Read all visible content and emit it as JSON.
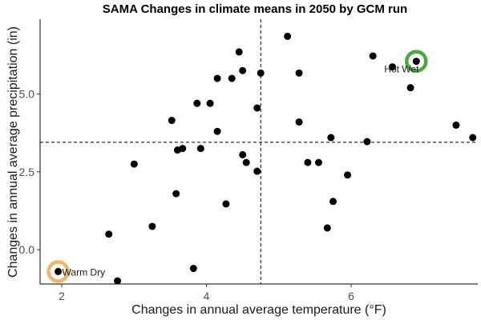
{
  "chart_data": {
    "type": "scatter",
    "title": "SAMA Changes in climate means in 2050 by GCM run",
    "xlabel": "Changes in annual average temperature (°F)",
    "ylabel": "Changes in annual average precipitation (in)",
    "xlim": [
      1.7,
      7.75
    ],
    "ylim": [
      -1.1,
      7.4
    ],
    "x_ticks": [
      2,
      4,
      6
    ],
    "x_tick_labels": [
      "2",
      "4",
      "6"
    ],
    "y_ticks": [
      0,
      2.5,
      5
    ],
    "y_tick_labels": [
      "0.0",
      "2.5",
      "5.0"
    ],
    "grid": false,
    "reference_lines": {
      "x": 4.75,
      "y": 3.45,
      "style": "dashed"
    },
    "points": [
      {
        "x": 1.95,
        "y": -0.7
      },
      {
        "x": 2.77,
        "y": -1.0
      },
      {
        "x": 2.65,
        "y": 0.5
      },
      {
        "x": 3.0,
        "y": 2.75
      },
      {
        "x": 3.25,
        "y": 0.75
      },
      {
        "x": 3.52,
        "y": 4.15
      },
      {
        "x": 3.58,
        "y": 1.8
      },
      {
        "x": 3.6,
        "y": 3.2
      },
      {
        "x": 3.67,
        "y": 3.25
      },
      {
        "x": 3.82,
        "y": -0.6
      },
      {
        "x": 3.87,
        "y": 4.7
      },
      {
        "x": 3.92,
        "y": 3.25
      },
      {
        "x": 4.05,
        "y": 4.7
      },
      {
        "x": 4.15,
        "y": 3.8
      },
      {
        "x": 4.15,
        "y": 5.5
      },
      {
        "x": 4.27,
        "y": 1.47
      },
      {
        "x": 4.35,
        "y": 5.5
      },
      {
        "x": 4.45,
        "y": 6.35
      },
      {
        "x": 4.5,
        "y": 3.05
      },
      {
        "x": 4.5,
        "y": 5.75
      },
      {
        "x": 4.55,
        "y": 2.8
      },
      {
        "x": 4.7,
        "y": 4.55
      },
      {
        "x": 4.7,
        "y": 2.52
      },
      {
        "x": 4.75,
        "y": 5.67
      },
      {
        "x": 5.12,
        "y": 6.85
      },
      {
        "x": 5.28,
        "y": 5.67
      },
      {
        "x": 5.28,
        "y": 4.1
      },
      {
        "x": 5.4,
        "y": 2.8
      },
      {
        "x": 5.55,
        "y": 2.8
      },
      {
        "x": 5.67,
        "y": 0.7
      },
      {
        "x": 5.72,
        "y": 3.6
      },
      {
        "x": 5.75,
        "y": 1.55
      },
      {
        "x": 5.95,
        "y": 2.4
      },
      {
        "x": 6.22,
        "y": 3.47
      },
      {
        "x": 6.3,
        "y": 6.22
      },
      {
        "x": 6.57,
        "y": 5.87
      },
      {
        "x": 6.82,
        "y": 5.2
      },
      {
        "x": 6.9,
        "y": 6.05
      },
      {
        "x": 7.45,
        "y": 4.0
      },
      {
        "x": 7.68,
        "y": 3.6
      }
    ],
    "highlights": [
      {
        "label": "Warm Dry",
        "x": 1.95,
        "y": -0.7,
        "color": "#f5b26b"
      },
      {
        "label": "Hot Wet",
        "x": 6.9,
        "y": 6.05,
        "color": "#4aa843"
      }
    ],
    "colors": {
      "points": "#000000",
      "axis": "#000000",
      "reference_line": "#000000"
    }
  }
}
